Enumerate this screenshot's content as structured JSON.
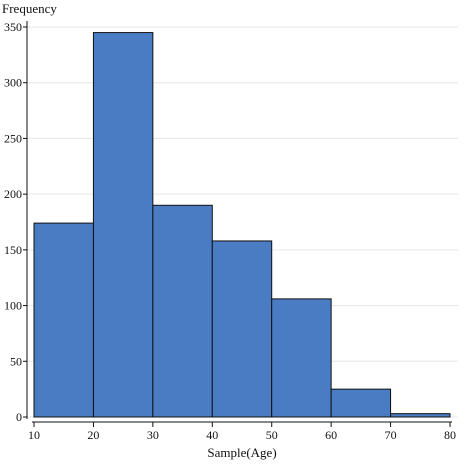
{
  "chart_data": {
    "type": "bar",
    "histogram": true,
    "bins": [
      {
        "start": 10,
        "end": 20,
        "value": 174
      },
      {
        "start": 20,
        "end": 30,
        "value": 345
      },
      {
        "start": 30,
        "end": 40,
        "value": 190
      },
      {
        "start": 40,
        "end": 50,
        "value": 158
      },
      {
        "start": 50,
        "end": 60,
        "value": 106
      },
      {
        "start": 60,
        "end": 70,
        "value": 25
      },
      {
        "start": 70,
        "end": 80,
        "value": 3
      }
    ],
    "xlabel": "Sample(Age)",
    "ylabel": "Frequency",
    "xlim": [
      10,
      80
    ],
    "ylim": [
      0,
      350
    ],
    "x_ticks": [
      10,
      20,
      30,
      40,
      50,
      60,
      70,
      80
    ],
    "y_ticks": [
      0,
      50,
      100,
      150,
      200,
      250,
      300,
      350
    ],
    "grid": true,
    "bar_color": "#4a7cc4",
    "bar_edge_color": "#111111",
    "grid_color": "#e6e6e6"
  }
}
